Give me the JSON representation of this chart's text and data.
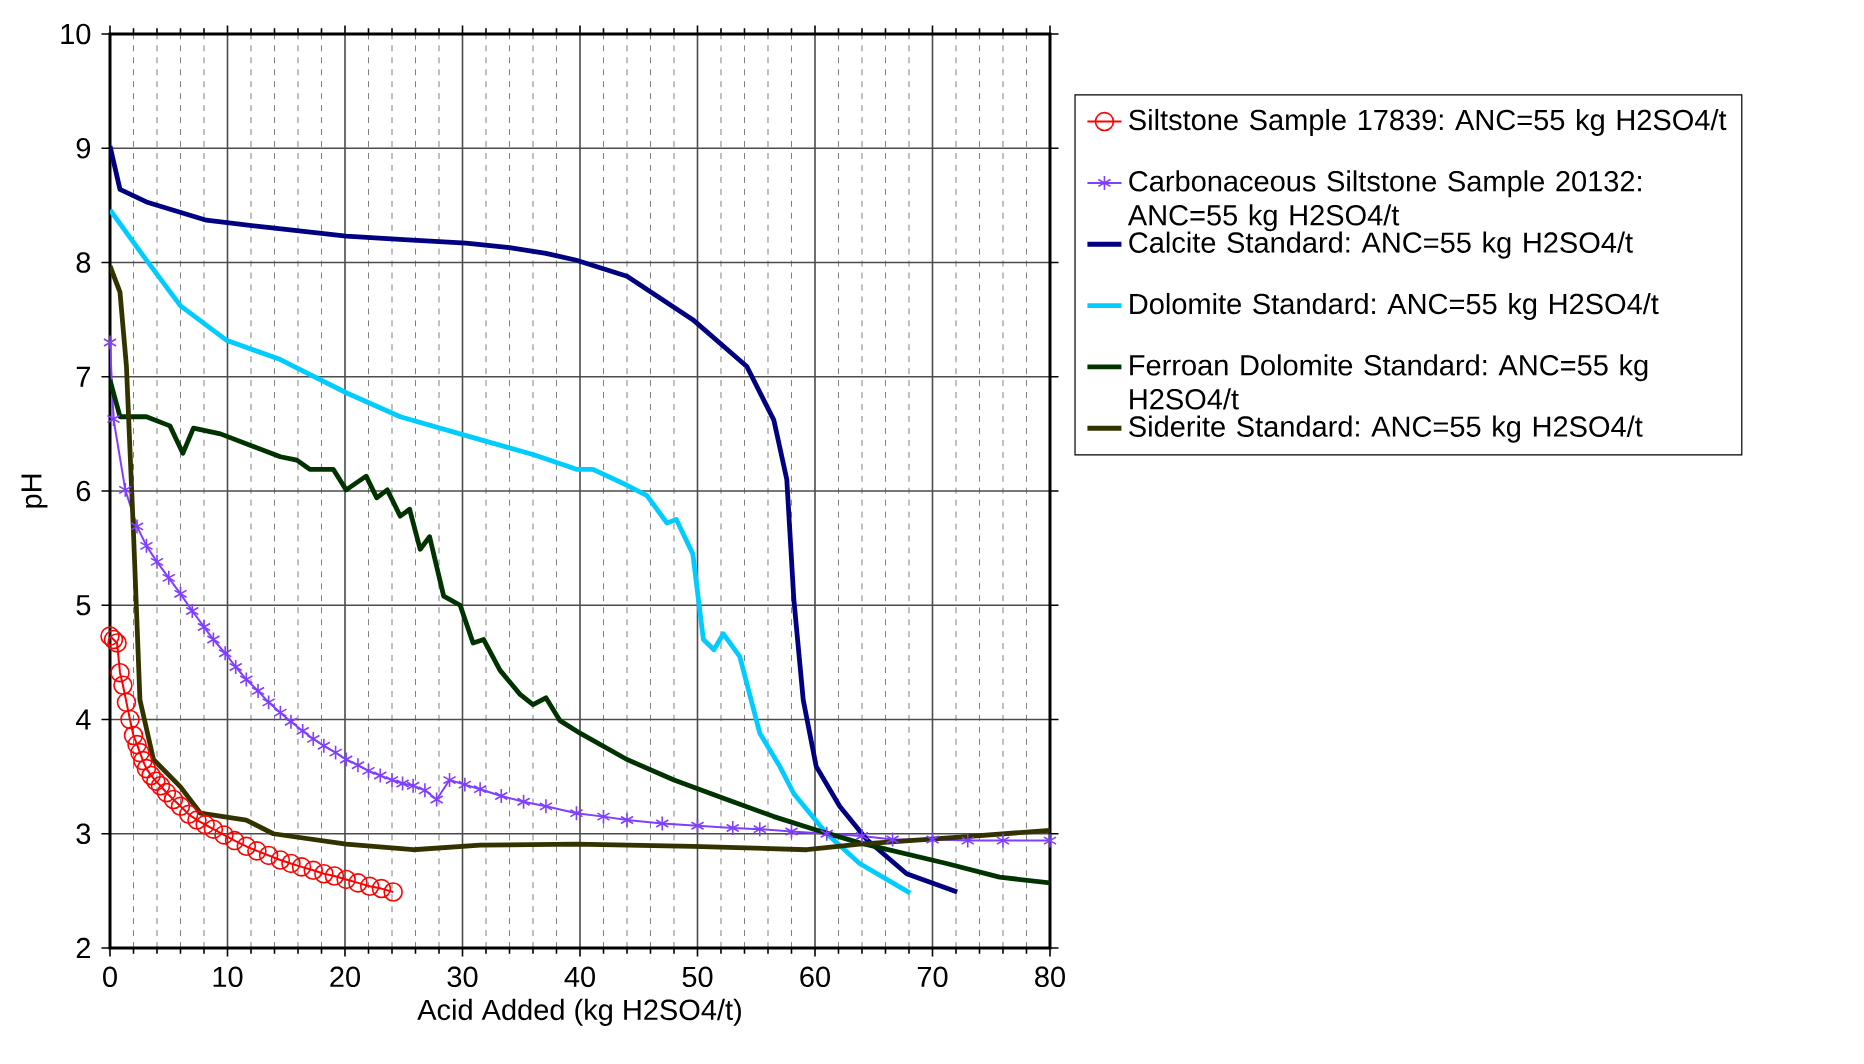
{
  "chart_data": {
    "type": "line",
    "xlabel": "Acid Added (kg H2SO4/t)",
    "ylabel": "pH",
    "xlim": [
      0,
      80
    ],
    "xticks": [
      0,
      10,
      20,
      30,
      40,
      50,
      60,
      70,
      80
    ],
    "ylim": [
      2,
      10
    ],
    "yticks": [
      2,
      3,
      4,
      5,
      6,
      7,
      8,
      9,
      10
    ],
    "grid": true,
    "legend": "right",
    "series": [
      {
        "name": "Siltstone Sample 17839: ANC=55 kg H2SO4/t",
        "color": "#ff0000",
        "marker": "circle",
        "x": [
          0,
          0.3,
          0.6,
          0.85,
          1.1,
          1.4,
          1.7,
          2.0,
          2.3,
          2.55,
          2.8,
          3.1,
          3.5,
          3.9,
          4.3,
          4.8,
          5.4,
          6.0,
          6.7,
          7.4,
          8.1,
          8.8,
          9.7,
          10.6,
          11.6,
          12.5,
          13.5,
          14.5,
          15.4,
          16.3,
          17.3,
          18.2,
          19.1,
          20.1,
          21.1,
          22.1,
          23.1,
          24.1
        ],
        "values": [
          4.73,
          4.7,
          4.67,
          4.41,
          4.3,
          4.15,
          4.0,
          3.86,
          3.78,
          3.71,
          3.64,
          3.57,
          3.51,
          3.46,
          3.42,
          3.36,
          3.3,
          3.24,
          3.17,
          3.12,
          3.08,
          3.04,
          2.99,
          2.94,
          2.89,
          2.85,
          2.81,
          2.77,
          2.74,
          2.71,
          2.68,
          2.65,
          2.63,
          2.6,
          2.57,
          2.54,
          2.52,
          2.49
        ]
      },
      {
        "name": "Carbonaceous Siltstone Sample 20132: ANC=55 kg H2SO4/t",
        "color": "#7f3fff",
        "marker": "cross",
        "x": [
          0,
          0.3,
          1.3,
          2.3,
          3.1,
          4.0,
          5.0,
          6.0,
          7.0,
          8.0,
          8.8,
          9.8,
          10.7,
          11.6,
          12.6,
          13.5,
          14.5,
          15.4,
          16.4,
          17.3,
          18.2,
          19.2,
          20.1,
          21.1,
          22.0,
          23.0,
          24.0,
          24.9,
          25.8,
          26.8,
          27.8,
          28.9,
          30.2,
          31.5,
          33.3,
          35.2,
          37.1,
          39.7,
          42.0,
          44.0,
          47.0,
          50.0,
          53.0,
          55.3,
          58.0,
          61.0,
          64.0,
          66.6,
          70.0,
          73.0,
          76.0,
          80.0
        ],
        "values": [
          7.3,
          6.63,
          6.01,
          5.69,
          5.52,
          5.38,
          5.24,
          5.1,
          4.95,
          4.81,
          4.7,
          4.58,
          4.46,
          4.35,
          4.25,
          4.15,
          4.06,
          3.98,
          3.9,
          3.83,
          3.77,
          3.71,
          3.65,
          3.6,
          3.55,
          3.51,
          3.47,
          3.44,
          3.42,
          3.38,
          3.3,
          3.47,
          3.43,
          3.39,
          3.33,
          3.28,
          3.24,
          3.18,
          3.15,
          3.12,
          3.09,
          3.07,
          3.05,
          3.04,
          3.02,
          3.0,
          2.98,
          2.95,
          2.95,
          2.94,
          2.94,
          2.94
        ]
      },
      {
        "name": "Calcite Standard: ANC=55 kg H2SO4/t",
        "color": "#000080",
        "marker": "none",
        "x": [
          0,
          0.85,
          3.1,
          8.2,
          14.0,
          20.1,
          25.0,
          30.3,
          34.0,
          37.1,
          39.7,
          44.0,
          49.6,
          54.2,
          56.5,
          57.6,
          58.2,
          59.0,
          60.1,
          62.1,
          64.4,
          67.8,
          72.1
        ],
        "values": [
          9.02,
          8.64,
          8.53,
          8.37,
          8.3,
          8.23,
          8.2,
          8.17,
          8.13,
          8.08,
          8.02,
          7.88,
          7.5,
          7.09,
          6.62,
          6.1,
          5.05,
          4.17,
          3.59,
          3.24,
          2.95,
          2.65,
          2.49
        ]
      },
      {
        "name": "Dolomite Standard: ANC=55 kg H2SO4/t",
        "color": "#00ccff",
        "marker": "none",
        "x": [
          0,
          3.1,
          6.0,
          9.9,
          14.5,
          20.1,
          24.7,
          31.5,
          36.0,
          39.7,
          41.1,
          44.0,
          45.7,
          47.4,
          48.2,
          49.6,
          50.5,
          51.4,
          52.2,
          53.6,
          55.3,
          57.0,
          58.2,
          61.0,
          63.8,
          68.1
        ],
        "values": [
          8.46,
          8.02,
          7.62,
          7.32,
          7.15,
          6.86,
          6.65,
          6.45,
          6.32,
          6.19,
          6.19,
          6.05,
          5.96,
          5.72,
          5.75,
          5.45,
          4.7,
          4.61,
          4.75,
          4.55,
          3.88,
          3.59,
          3.35,
          3.0,
          2.74,
          2.48
        ]
      },
      {
        "name": "Ferroan Dolomite Standard: ANC=55 kg H2SO4/t",
        "color": "#003300",
        "marker": "none",
        "x": [
          0,
          0.85,
          3.1,
          5.1,
          6.2,
          7.1,
          9.4,
          12.2,
          14.5,
          15.9,
          17.0,
          19.0,
          20.1,
          21.8,
          22.7,
          23.6,
          24.7,
          25.5,
          26.4,
          27.2,
          28.4,
          29.8,
          30.9,
          31.8,
          33.2,
          34.9,
          36.0,
          37.1,
          38.3,
          40.0,
          44.0,
          48.0,
          52.5,
          56.5,
          59.9,
          63.8,
          71.2,
          75.7,
          80.0
        ],
        "values": [
          6.97,
          6.65,
          6.65,
          6.57,
          6.33,
          6.55,
          6.5,
          6.39,
          6.3,
          6.27,
          6.19,
          6.19,
          6.01,
          6.13,
          5.94,
          6.01,
          5.78,
          5.84,
          5.49,
          5.6,
          5.08,
          5.0,
          4.67,
          4.7,
          4.43,
          4.22,
          4.13,
          4.19,
          3.99,
          3.88,
          3.65,
          3.47,
          3.3,
          3.15,
          3.04,
          2.92,
          2.74,
          2.62,
          2.57
        ]
      },
      {
        "name": "Siderite Standard: ANC=55 kg H2SO4/t",
        "color": "#333300",
        "marker": "none",
        "x": [
          0,
          0.85,
          1.4,
          2.0,
          2.55,
          3.7,
          6.0,
          7.7,
          11.6,
          13.9,
          20.1,
          25.8,
          31.5,
          39.7,
          49.6,
          59.3,
          63.8,
          72.3,
          80.0
        ],
        "values": [
          7.97,
          7.74,
          7.09,
          5.63,
          4.17,
          3.65,
          3.41,
          3.18,
          3.12,
          3.0,
          2.91,
          2.86,
          2.9,
          2.91,
          2.89,
          2.86,
          2.91,
          2.97,
          3.03
        ]
      }
    ]
  }
}
